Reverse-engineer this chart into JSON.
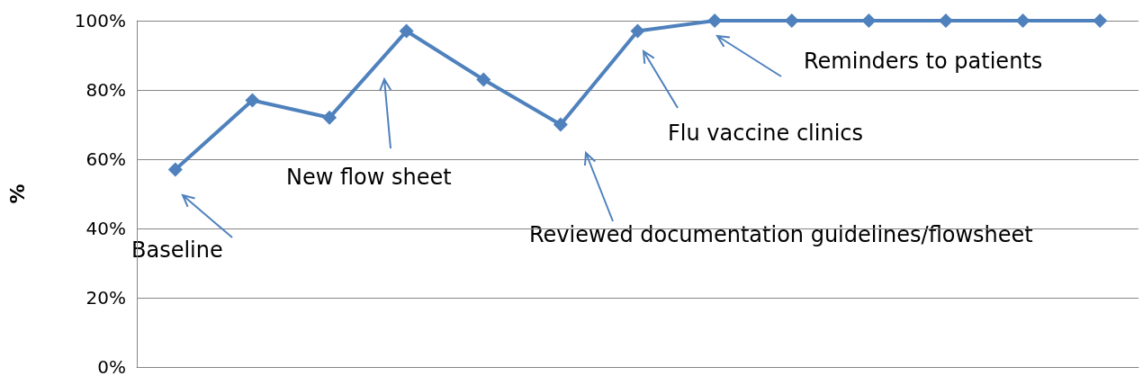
{
  "chart_data": {
    "type": "line",
    "ylabel": "%",
    "categories": [
      null,
      null,
      null,
      null,
      null,
      null,
      null,
      null,
      null,
      null,
      null,
      null,
      null
    ],
    "series": [
      {
        "color": "#4f81bd",
        "values": [
          57,
          77,
          72,
          97,
          83,
          70,
          97,
          100,
          100,
          100,
          100,
          100,
          100
        ]
      }
    ],
    "ylim": [
      0,
      100
    ],
    "yticks": [
      {
        "value": 0,
        "label": "0%"
      },
      {
        "value": 20,
        "label": "20%"
      },
      {
        "value": 40,
        "label": "40%"
      },
      {
        "value": 60,
        "label": "60%"
      },
      {
        "value": 80,
        "label": "80%"
      },
      {
        "value": 100,
        "label": "100%"
      }
    ],
    "grid": "y",
    "marker": "diamond",
    "line_style": "solid",
    "tick_labels": "y",
    "annotations": [
      "Baseline",
      "New flow sheet",
      "Reviewed documentation guidelines/flowsheet",
      "Flu vaccine clinics",
      "Reminders to patients"
    ]
  }
}
